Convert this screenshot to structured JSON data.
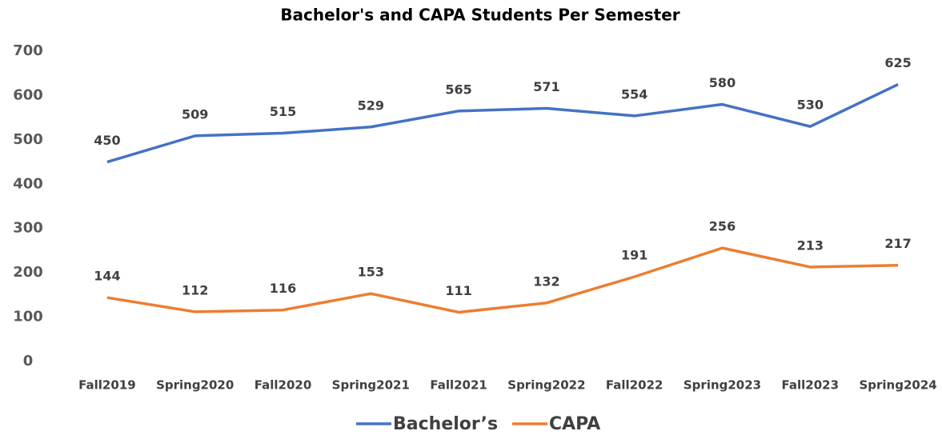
{
  "chart_data": {
    "type": "line",
    "title": "Bachelor's and CAPA Students Per Semester",
    "categories": [
      "Fall2019",
      "Spring2020",
      "Fall2020",
      "Spring2021",
      "Fall2021",
      "Spring2022",
      "Fall2022",
      "Spring2023",
      "Fall2023",
      "Spring2024"
    ],
    "series": [
      {
        "name": "Bachelor’s",
        "color": "#4472c4",
        "values": [
          450,
          509,
          515,
          529,
          565,
          571,
          554,
          580,
          530,
          625
        ]
      },
      {
        "name": "CAPA",
        "color": "#ed7d31",
        "values": [
          144,
          112,
          116,
          153,
          111,
          132,
          191,
          256,
          213,
          217
        ]
      }
    ],
    "ylim": [
      0,
      700
    ],
    "yticks": [
      0,
      100,
      200,
      300,
      400,
      500,
      600,
      700
    ],
    "grid": false,
    "legend": "bottom"
  }
}
